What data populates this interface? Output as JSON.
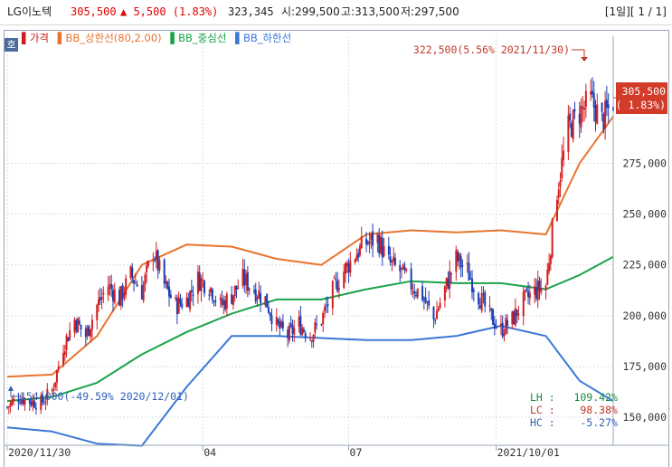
{
  "header": {
    "name": "LG이노텍",
    "price": "305,500",
    "change": "▲ 5,500 (1.83%)",
    "volume": "323,345",
    "open": "시:299,500",
    "high": "고:313,500",
    "low": "저:297,500",
    "page": "[1일][ 1 / 1]"
  },
  "ho_button": "호",
  "legend": {
    "price": "▌가격",
    "upper": "▌BB_상한선(80,2.00)",
    "mid": "▌BB_중심선",
    "lower": "▌BB_하한선"
  },
  "annotations": {
    "max": "322,500(5.56% 2021/11/30)",
    "min": "154,000(-49.59% 2020/12/01)",
    "current_price": "305,500",
    "current_pct": "( 1.83%)"
  },
  "stats": {
    "lh": "LH :   109.42%",
    "lc": "LC :    98.38%",
    "hc": "HC :    -5.27%"
  },
  "colors": {
    "up": "#d42020",
    "down": "#1a3fb5",
    "upper_band": "#e8742f",
    "mid_band": "#1aa24a",
    "lower_band": "#3a78d8",
    "price_badge": "#d23a2a"
  },
  "chart_data": {
    "type": "candlestick",
    "title": "",
    "y_ticks": [
      150000,
      175000,
      200000,
      225000,
      250000,
      275000
    ],
    "y_tick_labels": [
      "150,000",
      "175,000",
      "200,000",
      "225,000",
      "250,000",
      "275,000"
    ],
    "ylim": [
      138000,
      334000
    ],
    "x_tick_labels": [
      "2020/11/30",
      "04",
      "07",
      "2021/10/01"
    ],
    "x_tick_dates": [
      "2020-11-30",
      "2021-04-01",
      "2021-07-01",
      "2021-10-01"
    ],
    "xlim": [
      "2020-11-30",
      "2021-12-13"
    ],
    "grid": true,
    "close_approx": [
      [
        "2020-11-30",
        155000
      ],
      [
        "2020-12-07",
        160000
      ],
      [
        "2020-12-14",
        158000
      ],
      [
        "2020-12-21",
        157000
      ],
      [
        "2020-12-28",
        163000
      ],
      [
        "2021-01-04",
        185000
      ],
      [
        "2021-01-11",
        198000
      ],
      [
        "2021-01-18",
        190000
      ],
      [
        "2021-01-25",
        205000
      ],
      [
        "2021-02-01",
        215000
      ],
      [
        "2021-02-08",
        208000
      ],
      [
        "2021-02-15",
        220000
      ],
      [
        "2021-02-22",
        212000
      ],
      [
        "2021-03-01",
        232000
      ],
      [
        "2021-03-08",
        215000
      ],
      [
        "2021-03-15",
        205000
      ],
      [
        "2021-03-22",
        208000
      ],
      [
        "2021-03-29",
        218000
      ],
      [
        "2021-04-05",
        215000
      ],
      [
        "2021-04-12",
        205000
      ],
      [
        "2021-04-19",
        210000
      ],
      [
        "2021-04-26",
        218000
      ],
      [
        "2021-05-03",
        213000
      ],
      [
        "2021-05-10",
        208000
      ],
      [
        "2021-05-17",
        195000
      ],
      [
        "2021-05-24",
        190000
      ],
      [
        "2021-05-31",
        196000
      ],
      [
        "2021-06-07",
        190000
      ],
      [
        "2021-06-14",
        198000
      ],
      [
        "2021-06-21",
        212000
      ],
      [
        "2021-06-28",
        222000
      ],
      [
        "2021-07-05",
        230000
      ],
      [
        "2021-07-12",
        236000
      ],
      [
        "2021-07-19",
        238000
      ],
      [
        "2021-07-26",
        226000
      ],
      [
        "2021-08-02",
        222000
      ],
      [
        "2021-08-09",
        215000
      ],
      [
        "2021-08-16",
        210000
      ],
      [
        "2021-08-23",
        198000
      ],
      [
        "2021-08-30",
        213000
      ],
      [
        "2021-09-06",
        228000
      ],
      [
        "2021-09-13",
        222000
      ],
      [
        "2021-09-20",
        210000
      ],
      [
        "2021-09-27",
        200000
      ],
      [
        "2021-10-04",
        193000
      ],
      [
        "2021-10-11",
        198000
      ],
      [
        "2021-10-18",
        207000
      ],
      [
        "2021-10-25",
        212000
      ],
      [
        "2021-11-01",
        215000
      ],
      [
        "2021-11-08",
        262000
      ],
      [
        "2021-11-15",
        292000
      ],
      [
        "2021-11-22",
        300000
      ],
      [
        "2021-11-29",
        306000
      ],
      [
        "2021-12-06",
        296000
      ],
      [
        "2021-12-13",
        305500
      ]
    ],
    "series": [
      {
        "name": "BB_상한선(80,2.00)",
        "points": [
          [
            "2020-11-30",
            170000
          ],
          [
            "2020-12-28",
            171000
          ],
          [
            "2021-01-25",
            190000
          ],
          [
            "2021-02-22",
            225000
          ],
          [
            "2021-03-22",
            235000
          ],
          [
            "2021-04-19",
            234000
          ],
          [
            "2021-05-17",
            228000
          ],
          [
            "2021-06-14",
            225000
          ],
          [
            "2021-07-12",
            240000
          ],
          [
            "2021-08-09",
            242000
          ],
          [
            "2021-09-06",
            241000
          ],
          [
            "2021-10-04",
            242000
          ],
          [
            "2021-11-01",
            240000
          ],
          [
            "2021-11-22",
            275000
          ],
          [
            "2021-12-13",
            298000
          ]
        ]
      },
      {
        "name": "BB_중심선",
        "points": [
          [
            "2020-11-30",
            158000
          ],
          [
            "2020-12-28",
            160000
          ],
          [
            "2021-01-25",
            167000
          ],
          [
            "2021-02-22",
            181000
          ],
          [
            "2021-03-22",
            192000
          ],
          [
            "2021-04-19",
            201000
          ],
          [
            "2021-05-17",
            208000
          ],
          [
            "2021-06-14",
            208000
          ],
          [
            "2021-07-12",
            213000
          ],
          [
            "2021-08-09",
            217000
          ],
          [
            "2021-09-06",
            216000
          ],
          [
            "2021-10-04",
            216000
          ],
          [
            "2021-11-01",
            213000
          ],
          [
            "2021-11-22",
            220000
          ],
          [
            "2021-12-13",
            229000
          ]
        ]
      },
      {
        "name": "BB_하한선",
        "points": [
          [
            "2020-11-30",
            145000
          ],
          [
            "2020-12-28",
            143000
          ],
          [
            "2021-01-25",
            137000
          ],
          [
            "2021-02-22",
            136000
          ],
          [
            "2021-03-22",
            165000
          ],
          [
            "2021-04-19",
            190000
          ],
          [
            "2021-05-17",
            190000
          ],
          [
            "2021-06-14",
            189000
          ],
          [
            "2021-07-12",
            188000
          ],
          [
            "2021-08-09",
            188000
          ],
          [
            "2021-09-06",
            190000
          ],
          [
            "2021-10-04",
            195000
          ],
          [
            "2021-11-01",
            190000
          ],
          [
            "2021-11-22",
            168000
          ],
          [
            "2021-12-13",
            158000
          ]
        ]
      }
    ]
  }
}
